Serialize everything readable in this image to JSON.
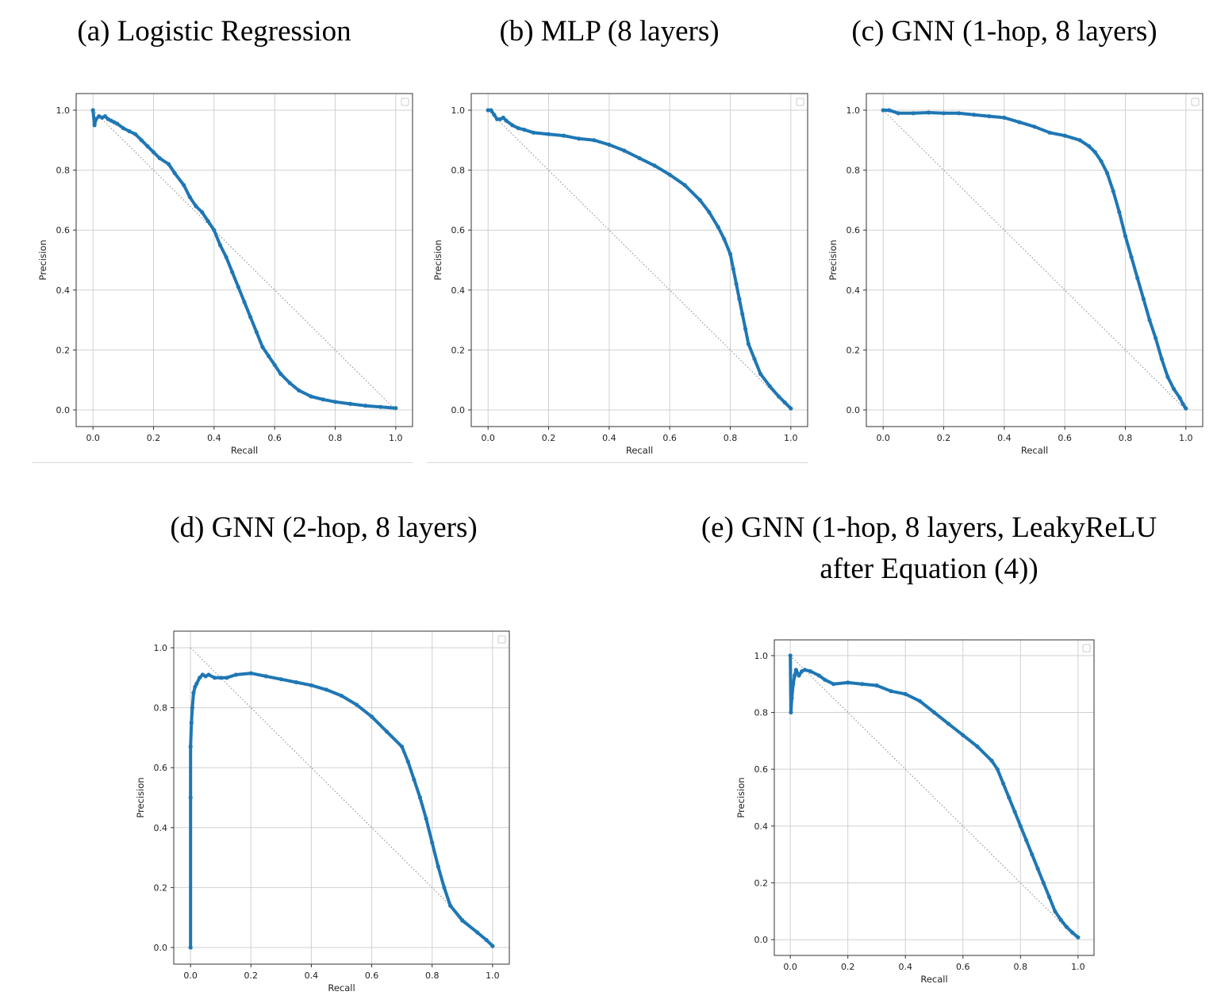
{
  "colors": {
    "series": "#1f77b4",
    "diagonal": "#9a9a9a",
    "grid": "#d0d0d0",
    "frame": "#333333"
  },
  "chart_data": [
    {
      "type": "line",
      "title": "(a) Logistic Regression",
      "xlabel": "Recall",
      "ylabel": "Precision",
      "xlim": [
        0,
        1
      ],
      "ylim": [
        0,
        1
      ],
      "xticks": [
        "0.0",
        "0.2",
        "0.4",
        "0.6",
        "0.8",
        "1.0"
      ],
      "yticks": [
        "0.0",
        "0.2",
        "0.4",
        "0.6",
        "0.8",
        "1.0"
      ],
      "grid": true,
      "legend": "top-right (empty)",
      "diagonal": [
        [
          0,
          1
        ],
        [
          1,
          0
        ]
      ],
      "series": [
        {
          "points": [
            [
              0,
              1.0
            ],
            [
              0.005,
              0.95
            ],
            [
              0.01,
              0.97
            ],
            [
              0.02,
              0.98
            ],
            [
              0.03,
              0.975
            ],
            [
              0.04,
              0.98
            ],
            [
              0.05,
              0.97
            ],
            [
              0.06,
              0.965
            ],
            [
              0.07,
              0.96
            ],
            [
              0.08,
              0.955
            ],
            [
              0.1,
              0.94
            ],
            [
              0.12,
              0.93
            ],
            [
              0.14,
              0.92
            ],
            [
              0.16,
              0.9
            ],
            [
              0.18,
              0.88
            ],
            [
              0.2,
              0.86
            ],
            [
              0.22,
              0.84
            ],
            [
              0.25,
              0.82
            ],
            [
              0.27,
              0.79
            ],
            [
              0.3,
              0.75
            ],
            [
              0.32,
              0.71
            ],
            [
              0.34,
              0.68
            ],
            [
              0.36,
              0.66
            ],
            [
              0.38,
              0.63
            ],
            [
              0.4,
              0.6
            ],
            [
              0.42,
              0.55
            ],
            [
              0.44,
              0.51
            ],
            [
              0.46,
              0.46
            ],
            [
              0.48,
              0.41
            ],
            [
              0.5,
              0.36
            ],
            [
              0.52,
              0.31
            ],
            [
              0.54,
              0.26
            ],
            [
              0.56,
              0.21
            ],
            [
              0.58,
              0.18
            ],
            [
              0.6,
              0.15
            ],
            [
              0.62,
              0.12
            ],
            [
              0.65,
              0.09
            ],
            [
              0.68,
              0.065
            ],
            [
              0.72,
              0.045
            ],
            [
              0.76,
              0.035
            ],
            [
              0.8,
              0.027
            ],
            [
              0.85,
              0.02
            ],
            [
              0.9,
              0.014
            ],
            [
              0.95,
              0.01
            ],
            [
              1.0,
              0.006
            ]
          ]
        }
      ]
    },
    {
      "type": "line",
      "title": "(b) MLP (8 layers)",
      "xlabel": "Recall",
      "ylabel": "Precision",
      "xlim": [
        0,
        1
      ],
      "ylim": [
        0,
        1
      ],
      "xticks": [
        "0.0",
        "0.2",
        "0.4",
        "0.6",
        "0.8",
        "1.0"
      ],
      "yticks": [
        "0.0",
        "0.2",
        "0.4",
        "0.6",
        "0.8",
        "1.0"
      ],
      "grid": true,
      "legend": "top-right (empty)",
      "diagonal": [
        [
          0,
          1
        ],
        [
          1,
          0
        ]
      ],
      "series": [
        {
          "points": [
            [
              0,
              1.0
            ],
            [
              0.01,
              1.0
            ],
            [
              0.02,
              0.985
            ],
            [
              0.03,
              0.97
            ],
            [
              0.04,
              0.97
            ],
            [
              0.05,
              0.975
            ],
            [
              0.06,
              0.965
            ],
            [
              0.08,
              0.95
            ],
            [
              0.1,
              0.94
            ],
            [
              0.12,
              0.935
            ],
            [
              0.15,
              0.925
            ],
            [
              0.2,
              0.92
            ],
            [
              0.25,
              0.915
            ],
            [
              0.3,
              0.905
            ],
            [
              0.35,
              0.9
            ],
            [
              0.4,
              0.885
            ],
            [
              0.45,
              0.865
            ],
            [
              0.5,
              0.84
            ],
            [
              0.55,
              0.815
            ],
            [
              0.6,
              0.785
            ],
            [
              0.65,
              0.75
            ],
            [
              0.7,
              0.7
            ],
            [
              0.73,
              0.66
            ],
            [
              0.76,
              0.61
            ],
            [
              0.78,
              0.57
            ],
            [
              0.8,
              0.52
            ],
            [
              0.81,
              0.47
            ],
            [
              0.82,
              0.42
            ],
            [
              0.83,
              0.37
            ],
            [
              0.84,
              0.32
            ],
            [
              0.85,
              0.27
            ],
            [
              0.86,
              0.22
            ],
            [
              0.88,
              0.17
            ],
            [
              0.9,
              0.12
            ],
            [
              0.93,
              0.08
            ],
            [
              0.96,
              0.045
            ],
            [
              0.98,
              0.025
            ],
            [
              1.0,
              0.005
            ]
          ]
        }
      ]
    },
    {
      "type": "line",
      "title": "(c) GNN (1-hop, 8 layers)",
      "xlabel": "Recall",
      "ylabel": "Precision",
      "xlim": [
        0,
        1
      ],
      "ylim": [
        0,
        1
      ],
      "xticks": [
        "0.0",
        "0.2",
        "0.4",
        "0.6",
        "0.8",
        "1.0"
      ],
      "yticks": [
        "0.0",
        "0.2",
        "0.4",
        "0.6",
        "0.8",
        "1.0"
      ],
      "grid": true,
      "legend": "top-right (empty)",
      "diagonal": [
        [
          0,
          1
        ],
        [
          1,
          0
        ]
      ],
      "series": [
        {
          "points": [
            [
              0,
              1.0
            ],
            [
              0.02,
              1.0
            ],
            [
              0.05,
              0.99
            ],
            [
              0.1,
              0.99
            ],
            [
              0.15,
              0.992
            ],
            [
              0.2,
              0.99
            ],
            [
              0.25,
              0.99
            ],
            [
              0.3,
              0.985
            ],
            [
              0.35,
              0.98
            ],
            [
              0.4,
              0.975
            ],
            [
              0.45,
              0.96
            ],
            [
              0.5,
              0.945
            ],
            [
              0.55,
              0.925
            ],
            [
              0.6,
              0.915
            ],
            [
              0.65,
              0.9
            ],
            [
              0.68,
              0.88
            ],
            [
              0.7,
              0.86
            ],
            [
              0.72,
              0.83
            ],
            [
              0.74,
              0.79
            ],
            [
              0.76,
              0.73
            ],
            [
              0.78,
              0.66
            ],
            [
              0.8,
              0.58
            ],
            [
              0.82,
              0.51
            ],
            [
              0.84,
              0.44
            ],
            [
              0.86,
              0.37
            ],
            [
              0.88,
              0.3
            ],
            [
              0.9,
              0.24
            ],
            [
              0.92,
              0.17
            ],
            [
              0.94,
              0.11
            ],
            [
              0.96,
              0.07
            ],
            [
              0.98,
              0.04
            ],
            [
              0.99,
              0.02
            ],
            [
              1.0,
              0.005
            ]
          ]
        }
      ]
    },
    {
      "type": "line",
      "title": "(d) GNN (2-hop, 8 layers)",
      "xlabel": "Recall",
      "ylabel": "Precision",
      "xlim": [
        0,
        1
      ],
      "ylim": [
        0,
        1
      ],
      "xticks": [
        "0.0",
        "0.2",
        "0.4",
        "0.6",
        "0.8",
        "1.0"
      ],
      "yticks": [
        "0.0",
        "0.2",
        "0.4",
        "0.6",
        "0.8",
        "1.0"
      ],
      "grid": true,
      "legend": "top-right (empty)",
      "diagonal": [
        [
          0,
          1
        ],
        [
          1,
          0
        ]
      ],
      "series": [
        {
          "points": [
            [
              0,
              0.0
            ],
            [
              0,
              0.5
            ],
            [
              0,
              0.67
            ],
            [
              0.003,
              0.75
            ],
            [
              0.006,
              0.8
            ],
            [
              0.01,
              0.85
            ],
            [
              0.015,
              0.87
            ],
            [
              0.02,
              0.88
            ],
            [
              0.03,
              0.9
            ],
            [
              0.04,
              0.91
            ],
            [
              0.05,
              0.905
            ],
            [
              0.06,
              0.91
            ],
            [
              0.08,
              0.9
            ],
            [
              0.1,
              0.9
            ],
            [
              0.12,
              0.9
            ],
            [
              0.15,
              0.91
            ],
            [
              0.2,
              0.915
            ],
            [
              0.25,
              0.905
            ],
            [
              0.3,
              0.895
            ],
            [
              0.35,
              0.885
            ],
            [
              0.4,
              0.875
            ],
            [
              0.45,
              0.86
            ],
            [
              0.5,
              0.84
            ],
            [
              0.55,
              0.81
            ],
            [
              0.6,
              0.77
            ],
            [
              0.65,
              0.72
            ],
            [
              0.7,
              0.67
            ],
            [
              0.72,
              0.62
            ],
            [
              0.74,
              0.56
            ],
            [
              0.76,
              0.5
            ],
            [
              0.78,
              0.43
            ],
            [
              0.8,
              0.35
            ],
            [
              0.82,
              0.27
            ],
            [
              0.84,
              0.2
            ],
            [
              0.86,
              0.14
            ],
            [
              0.9,
              0.09
            ],
            [
              0.95,
              0.05
            ],
            [
              0.98,
              0.025
            ],
            [
              1.0,
              0.005
            ]
          ]
        }
      ]
    },
    {
      "type": "line",
      "title": "(e) GNN (1-hop, 8 layers, LeakyReLU after Equation (4))",
      "title_lines": [
        "(e) GNN (1-hop, 8 layers, LeakyReLU",
        "after Equation (4))"
      ],
      "xlabel": "Recall",
      "ylabel": "Precision",
      "xlim": [
        0,
        1
      ],
      "ylim": [
        0,
        1
      ],
      "xticks": [
        "0.0",
        "0.2",
        "0.4",
        "0.6",
        "0.8",
        "1.0"
      ],
      "yticks": [
        "0.0",
        "0.2",
        "0.4",
        "0.6",
        "0.8",
        "1.0"
      ],
      "grid": true,
      "legend": "top-right (empty)",
      "diagonal": [
        [
          0,
          1
        ],
        [
          1,
          0
        ]
      ],
      "series": [
        {
          "points": [
            [
              0,
              1.0
            ],
            [
              0.002,
              0.8
            ],
            [
              0.005,
              0.85
            ],
            [
              0.01,
              0.9
            ],
            [
              0.015,
              0.93
            ],
            [
              0.02,
              0.95
            ],
            [
              0.03,
              0.93
            ],
            [
              0.04,
              0.945
            ],
            [
              0.05,
              0.95
            ],
            [
              0.07,
              0.945
            ],
            [
              0.1,
              0.93
            ],
            [
              0.12,
              0.915
            ],
            [
              0.15,
              0.9
            ],
            [
              0.2,
              0.905
            ],
            [
              0.25,
              0.9
            ],
            [
              0.3,
              0.895
            ],
            [
              0.35,
              0.875
            ],
            [
              0.4,
              0.865
            ],
            [
              0.45,
              0.84
            ],
            [
              0.5,
              0.8
            ],
            [
              0.55,
              0.76
            ],
            [
              0.6,
              0.72
            ],
            [
              0.65,
              0.68
            ],
            [
              0.7,
              0.63
            ],
            [
              0.72,
              0.6
            ],
            [
              0.74,
              0.55
            ],
            [
              0.76,
              0.5
            ],
            [
              0.78,
              0.45
            ],
            [
              0.8,
              0.4
            ],
            [
              0.82,
              0.35
            ],
            [
              0.84,
              0.3
            ],
            [
              0.86,
              0.25
            ],
            [
              0.88,
              0.2
            ],
            [
              0.9,
              0.15
            ],
            [
              0.92,
              0.1
            ],
            [
              0.94,
              0.07
            ],
            [
              0.96,
              0.045
            ],
            [
              0.98,
              0.025
            ],
            [
              1.0,
              0.008
            ]
          ]
        }
      ]
    }
  ]
}
